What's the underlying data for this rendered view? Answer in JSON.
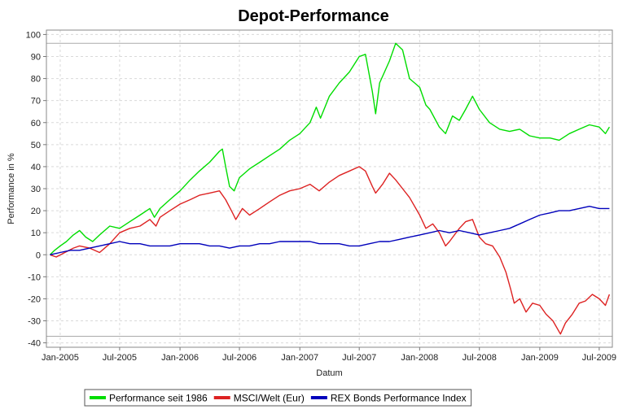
{
  "chart_data": {
    "type": "line",
    "title": "Depot-Performance",
    "xlabel": "Datum",
    "ylabel": "Performance in %",
    "x_ticks": [
      "Jan-2005",
      "Jul-2005",
      "Jan-2006",
      "Jul-2006",
      "Jan-2007",
      "Jul-2007",
      "Jan-2008",
      "Jul-2008",
      "Jan-2009",
      "Jul-2009"
    ],
    "xlim": [
      "2004-11-20",
      "2009-08-10"
    ],
    "y_ticks": [
      -40,
      -30,
      -20,
      -10,
      0,
      10,
      20,
      30,
      40,
      50,
      60,
      70,
      80,
      90,
      100
    ],
    "ylim": [
      -42,
      102
    ],
    "reference_lines": [
      96,
      -37
    ],
    "grid": true,
    "legend_position": "bottom",
    "series": [
      {
        "name": "Performance seit 1986",
        "color": "#00dd00",
        "points": [
          [
            "2004-12-01",
            0
          ],
          [
            "2004-12-15",
            2
          ],
          [
            "2005-01-01",
            4
          ],
          [
            "2005-01-20",
            6
          ],
          [
            "2005-02-10",
            9
          ],
          [
            "2005-03-01",
            11
          ],
          [
            "2005-03-20",
            8
          ],
          [
            "2005-04-10",
            6
          ],
          [
            "2005-05-01",
            9
          ],
          [
            "2005-06-01",
            13
          ],
          [
            "2005-07-01",
            12
          ],
          [
            "2005-08-01",
            15
          ],
          [
            "2005-09-01",
            18
          ],
          [
            "2005-10-01",
            21
          ],
          [
            "2005-10-15",
            17
          ],
          [
            "2005-11-01",
            21
          ],
          [
            "2005-12-01",
            25
          ],
          [
            "2006-01-01",
            29
          ],
          [
            "2006-02-01",
            34
          ],
          [
            "2006-03-01",
            38
          ],
          [
            "2006-04-01",
            42
          ],
          [
            "2006-05-01",
            47
          ],
          [
            "2006-05-10",
            48
          ],
          [
            "2006-05-20",
            40
          ],
          [
            "2006-06-01",
            31
          ],
          [
            "2006-06-15",
            29
          ],
          [
            "2006-07-01",
            35
          ],
          [
            "2006-08-01",
            39
          ],
          [
            "2006-09-01",
            42
          ],
          [
            "2006-10-01",
            45
          ],
          [
            "2006-11-01",
            48
          ],
          [
            "2006-12-01",
            52
          ],
          [
            "2007-01-01",
            55
          ],
          [
            "2007-02-01",
            60
          ],
          [
            "2007-02-20",
            67
          ],
          [
            "2007-03-05",
            62
          ],
          [
            "2007-04-01",
            72
          ],
          [
            "2007-05-01",
            78
          ],
          [
            "2007-06-01",
            83
          ],
          [
            "2007-07-01",
            90
          ],
          [
            "2007-07-20",
            91
          ],
          [
            "2007-08-10",
            74
          ],
          [
            "2007-08-20",
            64
          ],
          [
            "2007-09-01",
            78
          ],
          [
            "2007-10-01",
            88
          ],
          [
            "2007-10-20",
            96
          ],
          [
            "2007-11-10",
            93
          ],
          [
            "2007-12-01",
            80
          ],
          [
            "2008-01-01",
            76
          ],
          [
            "2008-01-20",
            68
          ],
          [
            "2008-02-01",
            66
          ],
          [
            "2008-03-01",
            58
          ],
          [
            "2008-03-20",
            55
          ],
          [
            "2008-04-10",
            63
          ],
          [
            "2008-05-01",
            61
          ],
          [
            "2008-05-20",
            66
          ],
          [
            "2008-06-10",
            72
          ],
          [
            "2008-07-01",
            66
          ],
          [
            "2008-08-01",
            60
          ],
          [
            "2008-09-01",
            57
          ],
          [
            "2008-10-01",
            56
          ],
          [
            "2008-11-01",
            57
          ],
          [
            "2008-12-01",
            54
          ],
          [
            "2009-01-01",
            53
          ],
          [
            "2009-02-01",
            53
          ],
          [
            "2009-03-01",
            52
          ],
          [
            "2009-04-01",
            55
          ],
          [
            "2009-05-01",
            57
          ],
          [
            "2009-06-01",
            59
          ],
          [
            "2009-07-01",
            58
          ],
          [
            "2009-07-20",
            55
          ],
          [
            "2009-08-01",
            58
          ]
        ]
      },
      {
        "name": "MSCI/Welt (Eur)",
        "color": "#dd2222",
        "points": [
          [
            "2004-12-01",
            0
          ],
          [
            "2004-12-20",
            -1
          ],
          [
            "2005-01-15",
            1
          ],
          [
            "2005-02-10",
            3
          ],
          [
            "2005-03-01",
            4
          ],
          [
            "2005-04-01",
            3
          ],
          [
            "2005-05-01",
            1
          ],
          [
            "2005-06-01",
            5
          ],
          [
            "2005-07-01",
            10
          ],
          [
            "2005-08-01",
            12
          ],
          [
            "2005-09-01",
            13
          ],
          [
            "2005-10-01",
            16
          ],
          [
            "2005-10-20",
            13
          ],
          [
            "2005-11-01",
            17
          ],
          [
            "2005-12-01",
            20
          ],
          [
            "2006-01-01",
            23
          ],
          [
            "2006-02-01",
            25
          ],
          [
            "2006-03-01",
            27
          ],
          [
            "2006-04-01",
            28
          ],
          [
            "2006-05-01",
            29
          ],
          [
            "2006-05-20",
            25
          ],
          [
            "2006-06-10",
            19
          ],
          [
            "2006-06-20",
            16
          ],
          [
            "2006-07-10",
            21
          ],
          [
            "2006-08-01",
            18
          ],
          [
            "2006-09-01",
            21
          ],
          [
            "2006-10-01",
            24
          ],
          [
            "2006-11-01",
            27
          ],
          [
            "2006-12-01",
            29
          ],
          [
            "2007-01-01",
            30
          ],
          [
            "2007-02-01",
            32
          ],
          [
            "2007-03-01",
            29
          ],
          [
            "2007-04-01",
            33
          ],
          [
            "2007-05-01",
            36
          ],
          [
            "2007-06-01",
            38
          ],
          [
            "2007-07-01",
            40
          ],
          [
            "2007-07-20",
            38
          ],
          [
            "2007-08-10",
            31
          ],
          [
            "2007-08-20",
            28
          ],
          [
            "2007-09-10",
            32
          ],
          [
            "2007-10-01",
            37
          ],
          [
            "2007-10-20",
            34
          ],
          [
            "2007-11-10",
            30
          ],
          [
            "2007-12-01",
            26
          ],
          [
            "2008-01-01",
            18
          ],
          [
            "2008-01-20",
            12
          ],
          [
            "2008-02-10",
            14
          ],
          [
            "2008-03-01",
            10
          ],
          [
            "2008-03-20",
            4
          ],
          [
            "2008-04-01",
            6
          ],
          [
            "2008-05-01",
            12
          ],
          [
            "2008-05-20",
            15
          ],
          [
            "2008-06-10",
            16
          ],
          [
            "2008-07-01",
            8
          ],
          [
            "2008-07-20",
            5
          ],
          [
            "2008-08-10",
            4
          ],
          [
            "2008-09-01",
            -1
          ],
          [
            "2008-09-20",
            -8
          ],
          [
            "2008-10-05",
            -16
          ],
          [
            "2008-10-15",
            -22
          ],
          [
            "2008-11-01",
            -20
          ],
          [
            "2008-11-20",
            -26
          ],
          [
            "2008-12-10",
            -22
          ],
          [
            "2009-01-01",
            -23
          ],
          [
            "2009-01-20",
            -27
          ],
          [
            "2009-02-10",
            -30
          ],
          [
            "2009-03-05",
            -36
          ],
          [
            "2009-03-20",
            -31
          ],
          [
            "2009-04-10",
            -27
          ],
          [
            "2009-05-01",
            -22
          ],
          [
            "2009-05-20",
            -21
          ],
          [
            "2009-06-10",
            -18
          ],
          [
            "2009-07-01",
            -20
          ],
          [
            "2009-07-20",
            -23
          ],
          [
            "2009-08-01",
            -18
          ]
        ]
      },
      {
        "name": "REX Bonds Performance Index",
        "color": "#0000bb",
        "points": [
          [
            "2004-12-01",
            0
          ],
          [
            "2005-01-01",
            1
          ],
          [
            "2005-02-01",
            2
          ],
          [
            "2005-03-01",
            2
          ],
          [
            "2005-04-01",
            3
          ],
          [
            "2005-05-01",
            4
          ],
          [
            "2005-06-01",
            5
          ],
          [
            "2005-07-01",
            6
          ],
          [
            "2005-08-01",
            5
          ],
          [
            "2005-09-01",
            5
          ],
          [
            "2005-10-01",
            4
          ],
          [
            "2005-11-01",
            4
          ],
          [
            "2005-12-01",
            4
          ],
          [
            "2006-01-01",
            5
          ],
          [
            "2006-02-01",
            5
          ],
          [
            "2006-03-01",
            5
          ],
          [
            "2006-04-01",
            4
          ],
          [
            "2006-05-01",
            4
          ],
          [
            "2006-06-01",
            3
          ],
          [
            "2006-07-01",
            4
          ],
          [
            "2006-08-01",
            4
          ],
          [
            "2006-09-01",
            5
          ],
          [
            "2006-10-01",
            5
          ],
          [
            "2006-11-01",
            6
          ],
          [
            "2006-12-01",
            6
          ],
          [
            "2007-01-01",
            6
          ],
          [
            "2007-02-01",
            6
          ],
          [
            "2007-03-01",
            5
          ],
          [
            "2007-04-01",
            5
          ],
          [
            "2007-05-01",
            5
          ],
          [
            "2007-06-01",
            4
          ],
          [
            "2007-07-01",
            4
          ],
          [
            "2007-08-01",
            5
          ],
          [
            "2007-09-01",
            6
          ],
          [
            "2007-10-01",
            6
          ],
          [
            "2007-11-01",
            7
          ],
          [
            "2007-12-01",
            8
          ],
          [
            "2008-01-01",
            9
          ],
          [
            "2008-02-01",
            10
          ],
          [
            "2008-03-01",
            11
          ],
          [
            "2008-04-01",
            10
          ],
          [
            "2008-05-01",
            11
          ],
          [
            "2008-06-01",
            10
          ],
          [
            "2008-07-01",
            9
          ],
          [
            "2008-08-01",
            10
          ],
          [
            "2008-09-01",
            11
          ],
          [
            "2008-10-01",
            12
          ],
          [
            "2008-11-01",
            14
          ],
          [
            "2008-12-01",
            16
          ],
          [
            "2009-01-01",
            18
          ],
          [
            "2009-02-01",
            19
          ],
          [
            "2009-03-01",
            20
          ],
          [
            "2009-04-01",
            20
          ],
          [
            "2009-05-01",
            21
          ],
          [
            "2009-06-01",
            22
          ],
          [
            "2009-07-01",
            21
          ],
          [
            "2009-08-01",
            21
          ]
        ]
      }
    ]
  }
}
